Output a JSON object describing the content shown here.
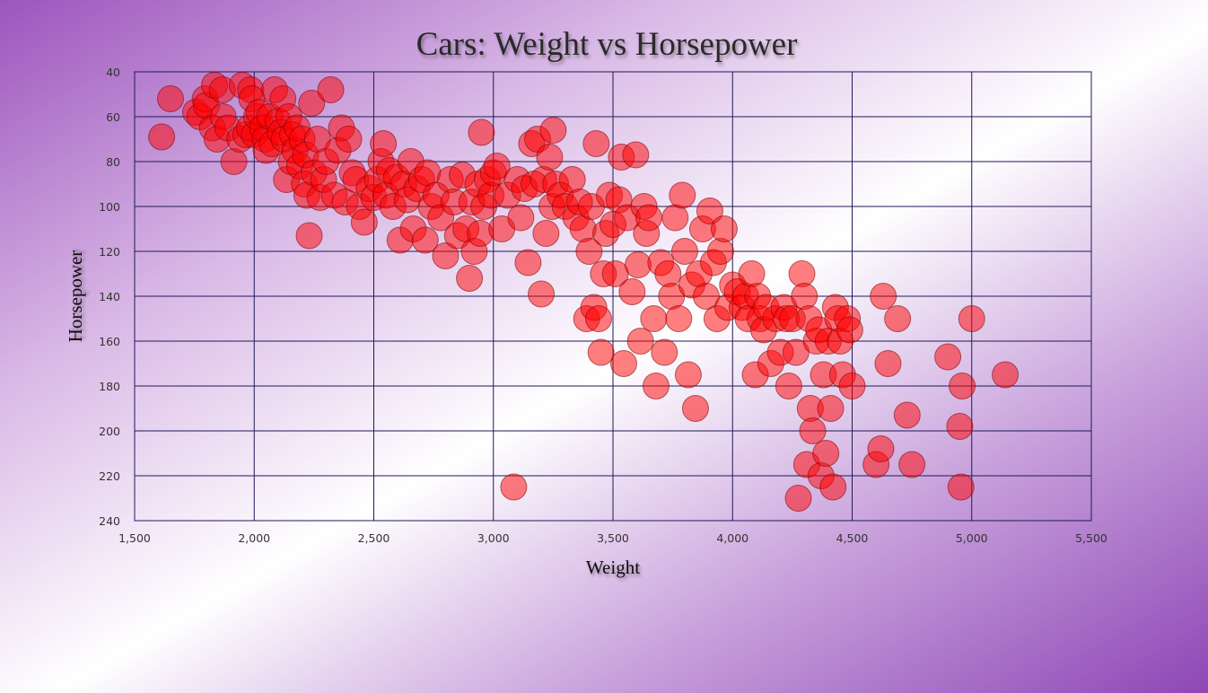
{
  "chart_data": {
    "type": "scatter",
    "title": "Cars: Weight vs Horsepower",
    "xlabel": "Weight",
    "ylabel": "Horsepower",
    "xlim": [
      1500,
      5500
    ],
    "ylim": [
      40,
      240
    ],
    "y_inverted": true,
    "grid": true,
    "x_ticks": [
      "1,500",
      "2,000",
      "2,500",
      "3,000",
      "3,500",
      "4,000",
      "4,500",
      "5,000",
      "5,500"
    ],
    "y_ticks": [
      "40",
      "60",
      "80",
      "100",
      "120",
      "140",
      "160",
      "180",
      "200",
      "220",
      "240"
    ],
    "colors": {
      "marker": "#ff0000",
      "grid": "#1f1a5a"
    },
    "points": [
      [
        1613,
        69
      ],
      [
        1650,
        52
      ],
      [
        1755,
        58
      ],
      [
        1773,
        60
      ],
      [
        1795,
        52
      ],
      [
        1800,
        55
      ],
      [
        1825,
        65
      ],
      [
        1834,
        46
      ],
      [
        1845,
        70
      ],
      [
        1867,
        48
      ],
      [
        1870,
        60
      ],
      [
        1890,
        65
      ],
      [
        1915,
        80
      ],
      [
        1940,
        70
      ],
      [
        1950,
        46
      ],
      [
        1965,
        68
      ],
      [
        1980,
        65
      ],
      [
        1985,
        48
      ],
      [
        1990,
        52
      ],
      [
        2000,
        68
      ],
      [
        2010,
        60
      ],
      [
        2020,
        58
      ],
      [
        2035,
        65
      ],
      [
        2045,
        70
      ],
      [
        2050,
        75
      ],
      [
        2065,
        60
      ],
      [
        2075,
        72
      ],
      [
        2085,
        48
      ],
      [
        2100,
        62
      ],
      [
        2110,
        67
      ],
      [
        2120,
        52
      ],
      [
        2125,
        70
      ],
      [
        2135,
        88
      ],
      [
        2145,
        60
      ],
      [
        2155,
        80
      ],
      [
        2160,
        68
      ],
      [
        2170,
        75
      ],
      [
        2180,
        65
      ],
      [
        2190,
        82
      ],
      [
        2200,
        70
      ],
      [
        2210,
        90
      ],
      [
        2215,
        77
      ],
      [
        2220,
        95
      ],
      [
        2230,
        113
      ],
      [
        2240,
        54
      ],
      [
        2250,
        85
      ],
      [
        2265,
        70
      ],
      [
        2275,
        96
      ],
      [
        2290,
        88
      ],
      [
        2300,
        80
      ],
      [
        2320,
        48
      ],
      [
        2335,
        95
      ],
      [
        2350,
        75
      ],
      [
        2365,
        65
      ],
      [
        2380,
        98
      ],
      [
        2395,
        70
      ],
      [
        2410,
        85
      ],
      [
        2425,
        88
      ],
      [
        2440,
        100
      ],
      [
        2460,
        107
      ],
      [
        2480,
        92
      ],
      [
        2500,
        96
      ],
      [
        2515,
        88
      ],
      [
        2530,
        80
      ],
      [
        2540,
        72
      ],
      [
        2550,
        95
      ],
      [
        2565,
        84
      ],
      [
        2580,
        100
      ],
      [
        2595,
        87
      ],
      [
        2610,
        115
      ],
      [
        2625,
        90
      ],
      [
        2640,
        97
      ],
      [
        2655,
        80
      ],
      [
        2665,
        110
      ],
      [
        2680,
        92
      ],
      [
        2700,
        88
      ],
      [
        2715,
        115
      ],
      [
        2725,
        85
      ],
      [
        2740,
        100
      ],
      [
        2760,
        95
      ],
      [
        2780,
        105
      ],
      [
        2800,
        122
      ],
      [
        2820,
        88
      ],
      [
        2835,
        98
      ],
      [
        2850,
        113
      ],
      [
        2870,
        86
      ],
      [
        2885,
        110
      ],
      [
        2900,
        132
      ],
      [
        2910,
        98
      ],
      [
        2920,
        120
      ],
      [
        2935,
        90
      ],
      [
        2945,
        112
      ],
      [
        2950,
        67
      ],
      [
        2960,
        100
      ],
      [
        2975,
        88
      ],
      [
        2990,
        95
      ],
      [
        3000,
        85
      ],
      [
        3015,
        82
      ],
      [
        3035,
        110
      ],
      [
        3060,
        95
      ],
      [
        3085,
        225
      ],
      [
        3100,
        88
      ],
      [
        3115,
        105
      ],
      [
        3130,
        92
      ],
      [
        3145,
        125
      ],
      [
        3160,
        72
      ],
      [
        3170,
        90
      ],
      [
        3185,
        70
      ],
      [
        3200,
        139
      ],
      [
        3210,
        88
      ],
      [
        3220,
        112
      ],
      [
        3235,
        78
      ],
      [
        3245,
        100
      ],
      [
        3250,
        66
      ],
      [
        3260,
        90
      ],
      [
        3280,
        95
      ],
      [
        3300,
        100
      ],
      [
        3330,
        88
      ],
      [
        3345,
        105
      ],
      [
        3360,
        98
      ],
      [
        3375,
        110
      ],
      [
        3390,
        150
      ],
      [
        3400,
        120
      ],
      [
        3410,
        100
      ],
      [
        3420,
        145
      ],
      [
        3430,
        72
      ],
      [
        3440,
        150
      ],
      [
        3450,
        165
      ],
      [
        3460,
        130
      ],
      [
        3470,
        112
      ],
      [
        3485,
        95
      ],
      [
        3500,
        108
      ],
      [
        3510,
        130
      ],
      [
        3525,
        97
      ],
      [
        3535,
        78
      ],
      [
        3545,
        170
      ],
      [
        3560,
        105
      ],
      [
        3580,
        138
      ],
      [
        3595,
        77
      ],
      [
        3605,
        126
      ],
      [
        3615,
        160
      ],
      [
        3630,
        100
      ],
      [
        3640,
        112
      ],
      [
        3650,
        105
      ],
      [
        3670,
        150
      ],
      [
        3680,
        180
      ],
      [
        3700,
        125
      ],
      [
        3715,
        165
      ],
      [
        3730,
        130
      ],
      [
        3745,
        140
      ],
      [
        3760,
        105
      ],
      [
        3775,
        150
      ],
      [
        3790,
        95
      ],
      [
        3800,
        120
      ],
      [
        3815,
        175
      ],
      [
        3830,
        135
      ],
      [
        3845,
        190
      ],
      [
        3860,
        130
      ],
      [
        3875,
        110
      ],
      [
        3890,
        140
      ],
      [
        3905,
        102
      ],
      [
        3920,
        125
      ],
      [
        3935,
        150
      ],
      [
        3950,
        120
      ],
      [
        3965,
        110
      ],
      [
        3980,
        145
      ],
      [
        4000,
        135
      ],
      [
        4020,
        138
      ],
      [
        4040,
        145
      ],
      [
        4055,
        140
      ],
      [
        4065,
        150
      ],
      [
        4080,
        130
      ],
      [
        4095,
        175
      ],
      [
        4105,
        140
      ],
      [
        4115,
        150
      ],
      [
        4130,
        155
      ],
      [
        4140,
        145
      ],
      [
        4160,
        170
      ],
      [
        4180,
        150
      ],
      [
        4200,
        165
      ],
      [
        4215,
        145
      ],
      [
        4225,
        150
      ],
      [
        4235,
        180
      ],
      [
        4250,
        150
      ],
      [
        4265,
        165
      ],
      [
        4275,
        230
      ],
      [
        4290,
        130
      ],
      [
        4300,
        140
      ],
      [
        4310,
        215
      ],
      [
        4320,
        150
      ],
      [
        4325,
        190
      ],
      [
        4335,
        200
      ],
      [
        4350,
        160
      ],
      [
        4360,
        155
      ],
      [
        4370,
        220
      ],
      [
        4380,
        175
      ],
      [
        4390,
        210
      ],
      [
        4400,
        160
      ],
      [
        4410,
        190
      ],
      [
        4420,
        225
      ],
      [
        4430,
        145
      ],
      [
        4440,
        150
      ],
      [
        4450,
        160
      ],
      [
        4460,
        175
      ],
      [
        4480,
        150
      ],
      [
        4490,
        155
      ],
      [
        4500,
        180
      ],
      [
        4600,
        215
      ],
      [
        4620,
        208
      ],
      [
        4630,
        140
      ],
      [
        4650,
        170
      ],
      [
        4690,
        150
      ],
      [
        4730,
        193
      ],
      [
        4750,
        215
      ],
      [
        4900,
        167
      ],
      [
        4950,
        198
      ],
      [
        4955,
        225
      ],
      [
        4960,
        180
      ],
      [
        5000,
        150
      ],
      [
        5140,
        175
      ]
    ]
  }
}
